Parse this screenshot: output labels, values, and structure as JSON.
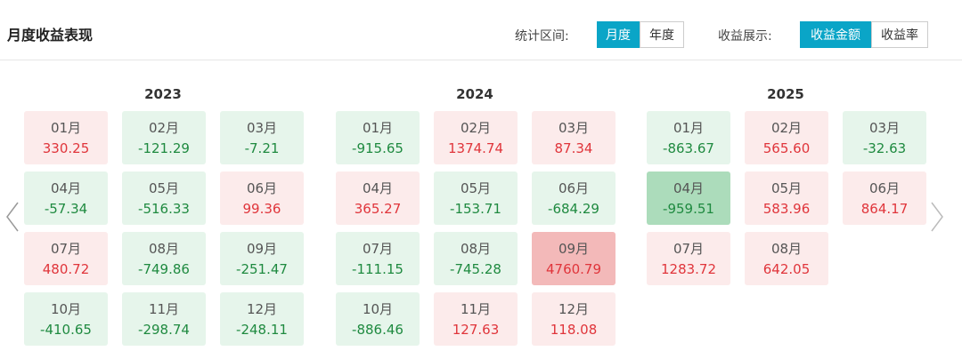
{
  "header": {
    "title": "月度收益表现",
    "period_label": "统计区间:",
    "period_options": [
      "月度",
      "年度"
    ],
    "period_active": 0,
    "display_label": "收益展示:",
    "display_options": [
      "收益金额",
      "收益率"
    ],
    "display_active": 0
  },
  "years": [
    {
      "year": "2023",
      "months": [
        {
          "month": "01月",
          "value": "330.25"
        },
        {
          "month": "02月",
          "value": "-121.29"
        },
        {
          "month": "03月",
          "value": "-7.21"
        },
        {
          "month": "04月",
          "value": "-57.34"
        },
        {
          "month": "05月",
          "value": "-516.33"
        },
        {
          "month": "06月",
          "value": "99.36"
        },
        {
          "month": "07月",
          "value": "480.72"
        },
        {
          "month": "08月",
          "value": "-749.86"
        },
        {
          "month": "09月",
          "value": "-251.47"
        },
        {
          "month": "10月",
          "value": "-410.65"
        },
        {
          "month": "11月",
          "value": "-298.74"
        },
        {
          "month": "12月",
          "value": "-248.11"
        }
      ]
    },
    {
      "year": "2024",
      "months": [
        {
          "month": "01月",
          "value": "-915.65"
        },
        {
          "month": "02月",
          "value": "1374.74"
        },
        {
          "month": "03月",
          "value": "87.34"
        },
        {
          "month": "04月",
          "value": "365.27"
        },
        {
          "month": "05月",
          "value": "-153.71"
        },
        {
          "month": "06月",
          "value": "-684.29"
        },
        {
          "month": "07月",
          "value": "-111.15"
        },
        {
          "month": "08月",
          "value": "-745.28"
        },
        {
          "month": "09月",
          "value": "4760.79",
          "color": "#f3b9b9"
        },
        {
          "month": "10月",
          "value": "-886.46"
        },
        {
          "month": "11月",
          "value": "127.63"
        },
        {
          "month": "12月",
          "value": "118.08"
        }
      ]
    },
    {
      "year": "2025",
      "months": [
        {
          "month": "01月",
          "value": "-863.67"
        },
        {
          "month": "02月",
          "value": "565.60"
        },
        {
          "month": "03月",
          "value": "-32.63"
        },
        {
          "month": "04月",
          "value": "-959.51",
          "color": "#acdcbb"
        },
        {
          "month": "05月",
          "value": "583.96"
        },
        {
          "month": "06月",
          "value": "864.17"
        },
        {
          "month": "07月",
          "value": "1283.72"
        },
        {
          "month": "08月",
          "value": "642.05"
        }
      ]
    }
  ]
}
